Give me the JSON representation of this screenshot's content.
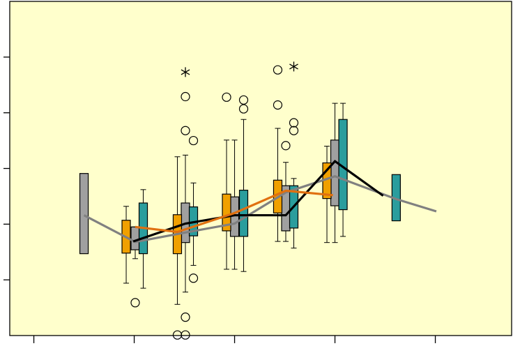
{
  "chart_data": {
    "type": "box",
    "xlim": [
      0.76,
      5.76
    ],
    "xticks": [
      1,
      2,
      3,
      4,
      5
    ],
    "ylim": [
      0,
      6
    ],
    "yticks": [
      1,
      2,
      3,
      4,
      5
    ],
    "background": "#ffffcc",
    "series": [
      {
        "color": "#a0a0a0",
        "boxes": [
          {
            "x": 1.5,
            "q1": 1.47,
            "q3": 2.91
          },
          {
            "x": 2.01,
            "q1": 1.54,
            "q3": 1.95,
            "lo": 1.38,
            "hi": 1.95
          },
          {
            "x": 2.51,
            "q1": 1.67,
            "q3": 2.38,
            "lo": 0.78,
            "hi": 3.24
          },
          {
            "x": 3.0,
            "q1": 1.78,
            "q3": 2.49,
            "lo": 1.19,
            "hi": 3.51
          },
          {
            "x": 3.51,
            "q1": 1.88,
            "q3": 2.69,
            "lo": 1.69,
            "hi": 3.11
          },
          {
            "x": 4.0,
            "q1": 2.33,
            "q3": 3.51,
            "lo": 1.67,
            "hi": 4.17
          }
        ]
      },
      {
        "color": "#f0a000",
        "boxes": [
          {
            "x": 1.92,
            "q1": 1.48,
            "q3": 2.07,
            "lo": 0.94,
            "hi": 2.32
          },
          {
            "x": 2.43,
            "q1": 1.47,
            "q3": 2.17,
            "lo": 0.56,
            "hi": 3.21
          },
          {
            "x": 2.92,
            "q1": 1.88,
            "q3": 2.54,
            "lo": 1.19,
            "hi": 3.51
          },
          {
            "x": 3.43,
            "q1": 2.2,
            "q3": 2.79,
            "lo": 1.69,
            "hi": 3.72
          },
          {
            "x": 3.92,
            "q1": 2.46,
            "q3": 3.1,
            "lo": 1.67,
            "hi": 3.4
          }
        ]
      },
      {
        "color": "#2a9d9d",
        "boxes": [
          {
            "x": 2.09,
            "q1": 1.47,
            "q3": 2.38,
            "lo": 0.85,
            "hi": 2.62
          },
          {
            "x": 2.59,
            "q1": 1.79,
            "q3": 2.31,
            "lo": 1.26,
            "hi": 2.74
          },
          {
            "x": 3.09,
            "q1": 1.78,
            "q3": 2.61,
            "lo": 1.15,
            "hi": 3.88
          },
          {
            "x": 3.59,
            "q1": 1.93,
            "q3": 2.69,
            "lo": 1.57,
            "hi": 2.82
          },
          {
            "x": 4.08,
            "q1": 2.26,
            "q3": 3.88,
            "lo": 1.78,
            "hi": 4.17
          },
          {
            "x": 4.61,
            "q1": 2.06,
            "q3": 2.89
          }
        ]
      }
    ],
    "outliers": {
      "x": [
        2.01,
        2.51,
        2.51,
        2.59,
        2.59,
        2.51,
        2.43,
        2.51,
        2.92,
        3.09,
        3.09,
        3.43,
        3.43,
        3.51,
        3.59,
        3.59
      ],
      "y": [
        0.59,
        4.29,
        3.68,
        3.5,
        1.03,
        0.33,
        0.01,
        0.01,
        4.28,
        4.23,
        4.07,
        4.77,
        4.14,
        3.41,
        3.82,
        3.68
      ]
    },
    "extremes": {
      "x": [
        2.51,
        3.59
      ],
      "y": [
        4.73,
        4.83
      ]
    },
    "lines": [
      {
        "color": "#808080",
        "x": [
          1.5,
          2.01,
          2.51,
          3.0,
          3.51,
          4.0,
          4.61,
          5.01
        ],
        "y": [
          2.16,
          1.68,
          1.85,
          2.01,
          2.57,
          2.86,
          2.45,
          2.23
        ]
      },
      {
        "color": "#000000",
        "x": [
          1.99,
          2.51,
          3.0,
          3.51,
          4.0,
          4.48
        ],
        "y": [
          1.69,
          2.01,
          2.16,
          2.16,
          3.13,
          2.51
        ]
      },
      {
        "color": "#e07010",
        "x": [
          2.01,
          2.43,
          3.0,
          3.51,
          3.98
        ],
        "y": [
          1.95,
          1.86,
          2.2,
          2.6,
          2.52
        ]
      }
    ]
  }
}
